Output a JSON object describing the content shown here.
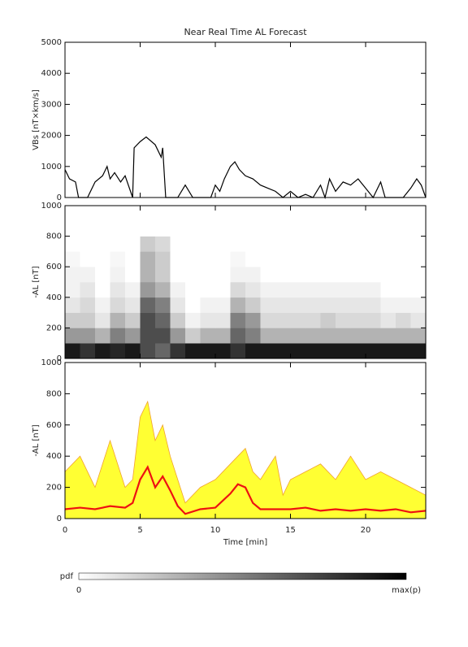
{
  "chart_data": [
    {
      "type": "line",
      "title": "Near Real Time AL Forecast",
      "ylabel": "VBs [nT×km/s]",
      "x": [
        0,
        0.3,
        0.7,
        0.9,
        1.5,
        2,
        2.5,
        2.8,
        3,
        3.3,
        3.7,
        4,
        4.5,
        4.6,
        5,
        5.4,
        6,
        6.4,
        6.5,
        6.7,
        7.5,
        8,
        8.5,
        9.7,
        10,
        10.3,
        10.6,
        11,
        11.3,
        11.6,
        12,
        12.5,
        13,
        13.5,
        14,
        14.5,
        15,
        15.5,
        16,
        16.5,
        17,
        17.3,
        17.6,
        18,
        18.5,
        19,
        19.5,
        20,
        20.5,
        21,
        21.3,
        22.5,
        23,
        23.4,
        23.7,
        24
      ],
      "series": [
        {
          "color": "#000000",
          "values": [
            900,
            600,
            500,
            0,
            0,
            500,
            700,
            1000,
            600,
            800,
            500,
            700,
            0,
            1600,
            1800,
            1950,
            1700,
            1300,
            1600,
            0,
            0,
            400,
            0,
            0,
            400,
            200,
            600,
            1000,
            1150,
            900,
            700,
            600,
            400,
            300,
            200,
            0,
            200,
            0,
            100,
            0,
            400,
            0,
            600,
            200,
            500,
            400,
            600,
            300,
            0,
            500,
            0,
            0,
            300,
            600,
            400,
            0
          ]
        }
      ],
      "xlim": [
        0,
        24
      ],
      "ylim": [
        0,
        5000
      ],
      "yticks": [
        0,
        1000,
        2000,
        3000,
        4000,
        5000
      ]
    },
    {
      "type": "heatmap",
      "ylabel": "-AL [nT]",
      "xlim": [
        0,
        24
      ],
      "ylim": [
        0,
        1000
      ],
      "yticks": [
        0,
        200,
        400,
        600,
        800,
        1000
      ],
      "xbin": 1,
      "ybin": 100,
      "z": [
        [
          0.9,
          0.8,
          0.9,
          0.85,
          0.9,
          0.7,
          0.6,
          0.8,
          0.9,
          0.9,
          0.9,
          0.8,
          0.9,
          0.9,
          0.9,
          0.9,
          0.9,
          0.9,
          0.9,
          0.9,
          0.9,
          0.9,
          0.9,
          0.9
        ],
        [
          0.4,
          0.4,
          0.3,
          0.5,
          0.4,
          0.7,
          0.7,
          0.4,
          0.2,
          0.3,
          0.3,
          0.6,
          0.5,
          0.3,
          0.3,
          0.3,
          0.3,
          0.3,
          0.3,
          0.3,
          0.3,
          0.3,
          0.3,
          0.3
        ],
        [
          0.2,
          0.2,
          0.1,
          0.3,
          0.2,
          0.7,
          0.6,
          0.2,
          0.05,
          0.1,
          0.1,
          0.5,
          0.4,
          0.15,
          0.15,
          0.15,
          0.15,
          0.2,
          0.15,
          0.15,
          0.15,
          0.1,
          0.15,
          0.1
        ],
        [
          0.1,
          0.15,
          0.05,
          0.15,
          0.1,
          0.6,
          0.5,
          0.1,
          0,
          0.05,
          0.05,
          0.3,
          0.2,
          0.1,
          0.1,
          0.1,
          0.1,
          0.1,
          0.1,
          0.1,
          0.1,
          0.05,
          0.05,
          0.05
        ],
        [
          0.05,
          0.1,
          0,
          0.1,
          0.05,
          0.4,
          0.3,
          0.05,
          0,
          0,
          0,
          0.15,
          0.1,
          0.05,
          0.05,
          0.05,
          0.05,
          0.05,
          0.05,
          0.05,
          0.05,
          0,
          0,
          0
        ],
        [
          0.05,
          0.05,
          0,
          0.05,
          0,
          0.3,
          0.2,
          0,
          0,
          0,
          0,
          0.05,
          0.05,
          0,
          0,
          0,
          0,
          0,
          0,
          0,
          0,
          0,
          0,
          0
        ],
        [
          0.03,
          0,
          0,
          0.03,
          0,
          0.3,
          0.2,
          0,
          0,
          0,
          0,
          0.03,
          0,
          0,
          0,
          0,
          0,
          0,
          0,
          0,
          0,
          0,
          0,
          0
        ],
        [
          0,
          0,
          0,
          0,
          0,
          0.2,
          0.15,
          0,
          0,
          0,
          0,
          0,
          0,
          0,
          0,
          0,
          0,
          0,
          0,
          0,
          0,
          0,
          0,
          0
        ],
        [
          0,
          0,
          0,
          0,
          0,
          0,
          0,
          0,
          0,
          0,
          0,
          0,
          0,
          0,
          0,
          0,
          0,
          0,
          0,
          0,
          0,
          0,
          0,
          0
        ],
        [
          0,
          0,
          0,
          0,
          0,
          0,
          0,
          0,
          0,
          0,
          0,
          0,
          0,
          0,
          0,
          0,
          0,
          0,
          0,
          0,
          0,
          0,
          0,
          0
        ]
      ]
    },
    {
      "type": "band",
      "ylabel": "-AL [nT]",
      "xlabel": "Time [min]",
      "x": [
        0,
        1,
        2,
        3,
        4,
        4.5,
        5,
        5.5,
        6,
        6.5,
        7,
        7.5,
        8,
        9,
        10,
        11,
        11.5,
        12,
        12.5,
        13,
        14,
        14.5,
        15,
        16,
        17,
        18,
        19,
        20,
        21,
        22,
        23,
        24
      ],
      "series": [
        {
          "type": "area",
          "color": "#ffff33",
          "edge_color": "#f0a030",
          "values": [
            300,
            400,
            200,
            500,
            200,
            250,
            650,
            750,
            500,
            600,
            400,
            250,
            100,
            200,
            250,
            350,
            400,
            450,
            300,
            250,
            400,
            150,
            250,
            300,
            350,
            250,
            400,
            250,
            300,
            250,
            200,
            150
          ]
        },
        {
          "type": "line",
          "color": "#ee1111",
          "values": [
            60,
            70,
            60,
            80,
            70,
            100,
            250,
            330,
            200,
            270,
            180,
            80,
            30,
            60,
            70,
            160,
            220,
            200,
            100,
            60,
            60,
            60,
            60,
            70,
            50,
            60,
            50,
            60,
            50,
            60,
            40,
            50
          ]
        }
      ],
      "xlim": [
        0,
        24
      ],
      "xticks": [
        0,
        5,
        10,
        15,
        20
      ],
      "ylim": [
        0,
        1000
      ],
      "yticks": [
        0,
        200,
        400,
        600,
        800,
        1000
      ]
    }
  ],
  "colorbar": {
    "label": "pdf",
    "min_label": "0",
    "max_label": "max(p)"
  }
}
